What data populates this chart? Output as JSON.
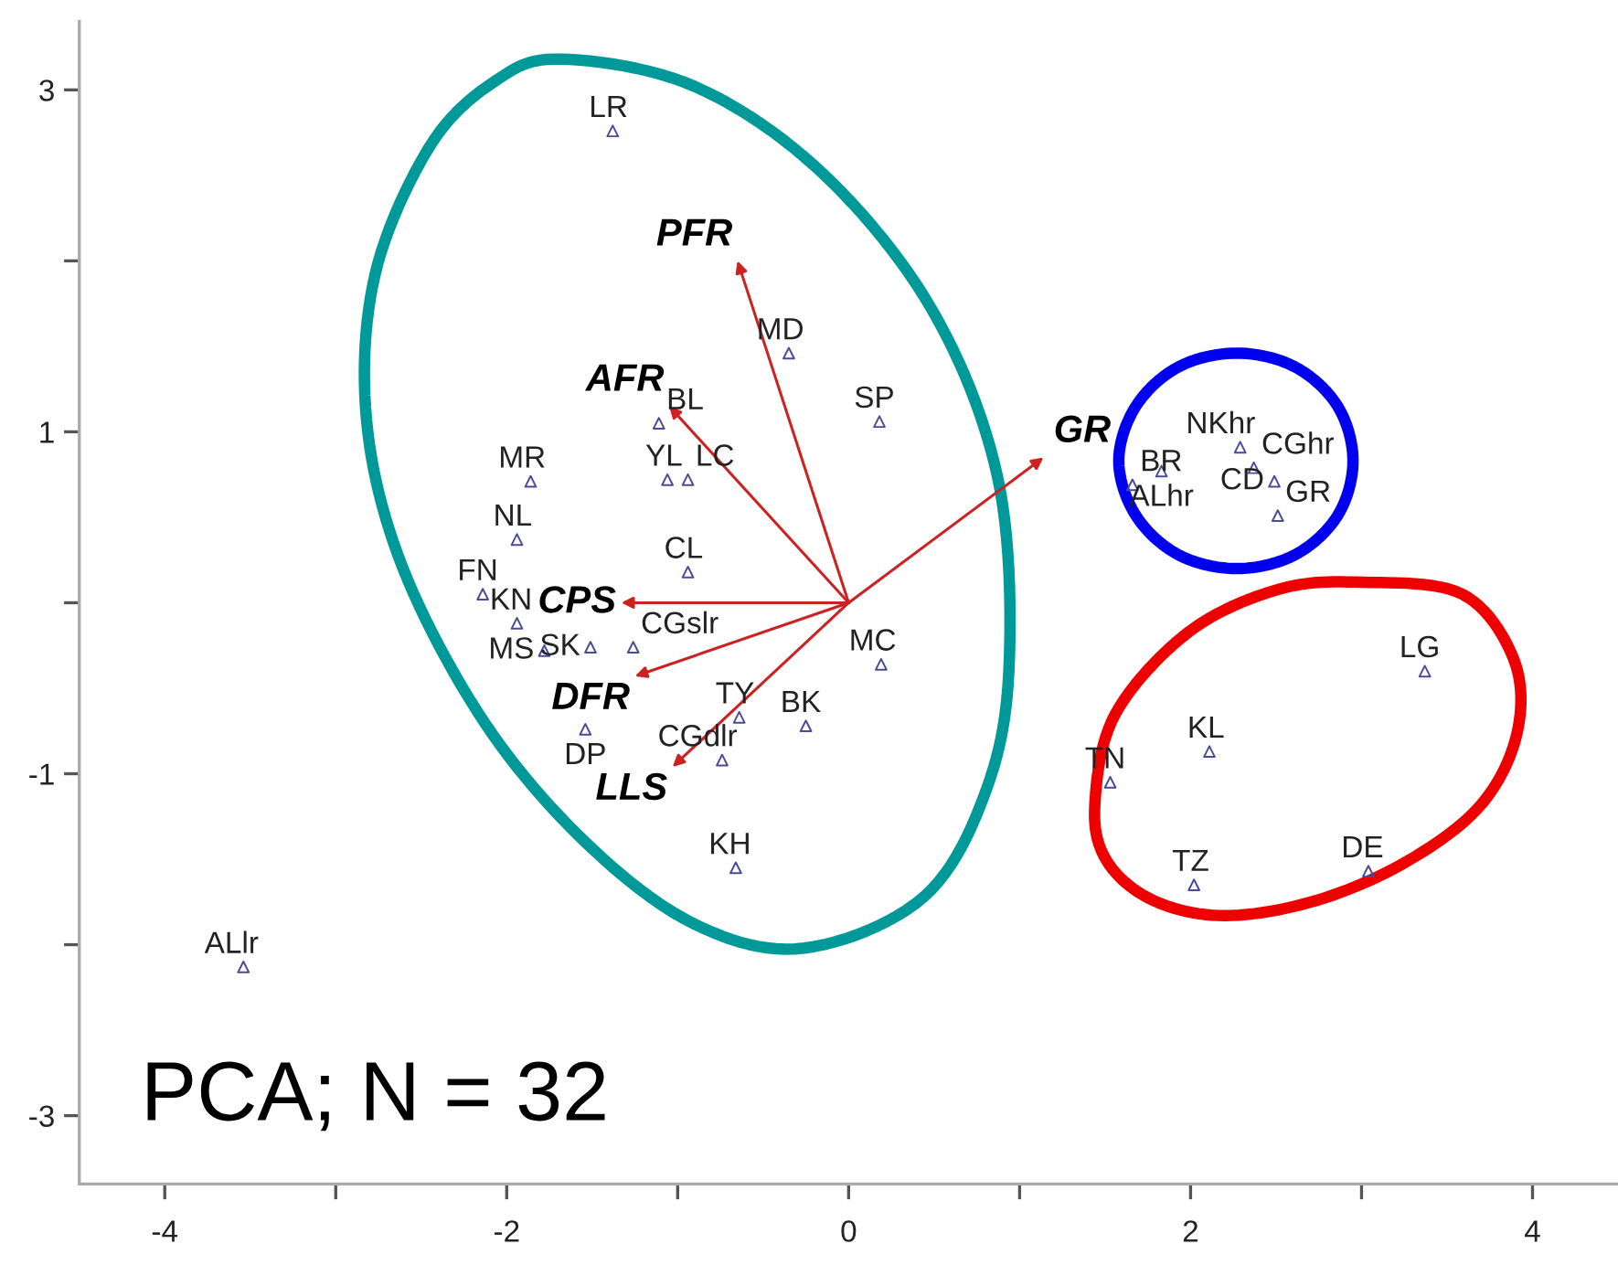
{
  "chart_data": {
    "type": "scatter",
    "xlim": [
      -4.5,
      4.5
    ],
    "ylim": [
      -3.4,
      3.4
    ],
    "xticks": [
      -4,
      {
        "value": -3,
        "label": null
      },
      -2,
      {
        "value": -1,
        "label": null
      },
      0,
      {
        "value": 1,
        "label": null
      },
      2,
      {
        "value": 3,
        "label": null
      },
      4
    ],
    "yticks": [
      -3,
      {
        "value": -2,
        "label": null
      },
      -1,
      {
        "value": 0,
        "label": null
      },
      1,
      {
        "value": 2,
        "label": null
      },
      3
    ],
    "grid": false,
    "legend": false,
    "annotations": [
      "PCA; N = 32",
      "PFR",
      "AFR",
      "CPS",
      "DFR",
      "LLS",
      "GR"
    ],
    "series": [
      {
        "color": "#4a4a9a",
        "marker": "triangle",
        "x": [
          -1.38,
          -0.35,
          0.18,
          -1.11,
          -1.06,
          -0.94,
          -1.86,
          -1.94,
          -2.14,
          -1.94,
          -0.94,
          -1.78,
          -1.51,
          -1.26,
          -1.54,
          -0.74,
          -0.64,
          -0.25,
          0.19,
          -0.66,
          -3.54,
          1.66,
          1.83,
          2.29,
          2.37,
          2.49,
          2.51,
          3.37,
          2.11,
          1.53,
          2.02,
          3.04
        ],
        "values": [
          2.76,
          1.46,
          1.06,
          1.05,
          0.72,
          0.72,
          0.71,
          0.37,
          0.05,
          -0.12,
          0.18,
          -0.28,
          -0.26,
          -0.26,
          -0.74,
          -0.92,
          -0.67,
          -0.72,
          -0.36,
          -1.55,
          -2.13,
          0.69,
          0.77,
          0.91,
          0.79,
          0.71,
          0.51,
          -0.4,
          -0.87,
          -1.05,
          -1.65,
          -1.57
        ],
        "value_labels": [
          "LR",
          "MD",
          "SP",
          "BL",
          "YL",
          "LC",
          "MR",
          "NL",
          "FN",
          "KN",
          "CL",
          "MS",
          "SK",
          "CGslr",
          "DP",
          "CGdlr",
          "TY",
          "BK",
          "MC",
          "KH",
          "ALlr",
          "BR",
          "ALhr",
          "NKhr",
          "CGhr",
          "CD",
          "GR",
          "LG",
          "KL",
          "TN",
          "TZ",
          "DE"
        ]
      }
    ]
  }
}
